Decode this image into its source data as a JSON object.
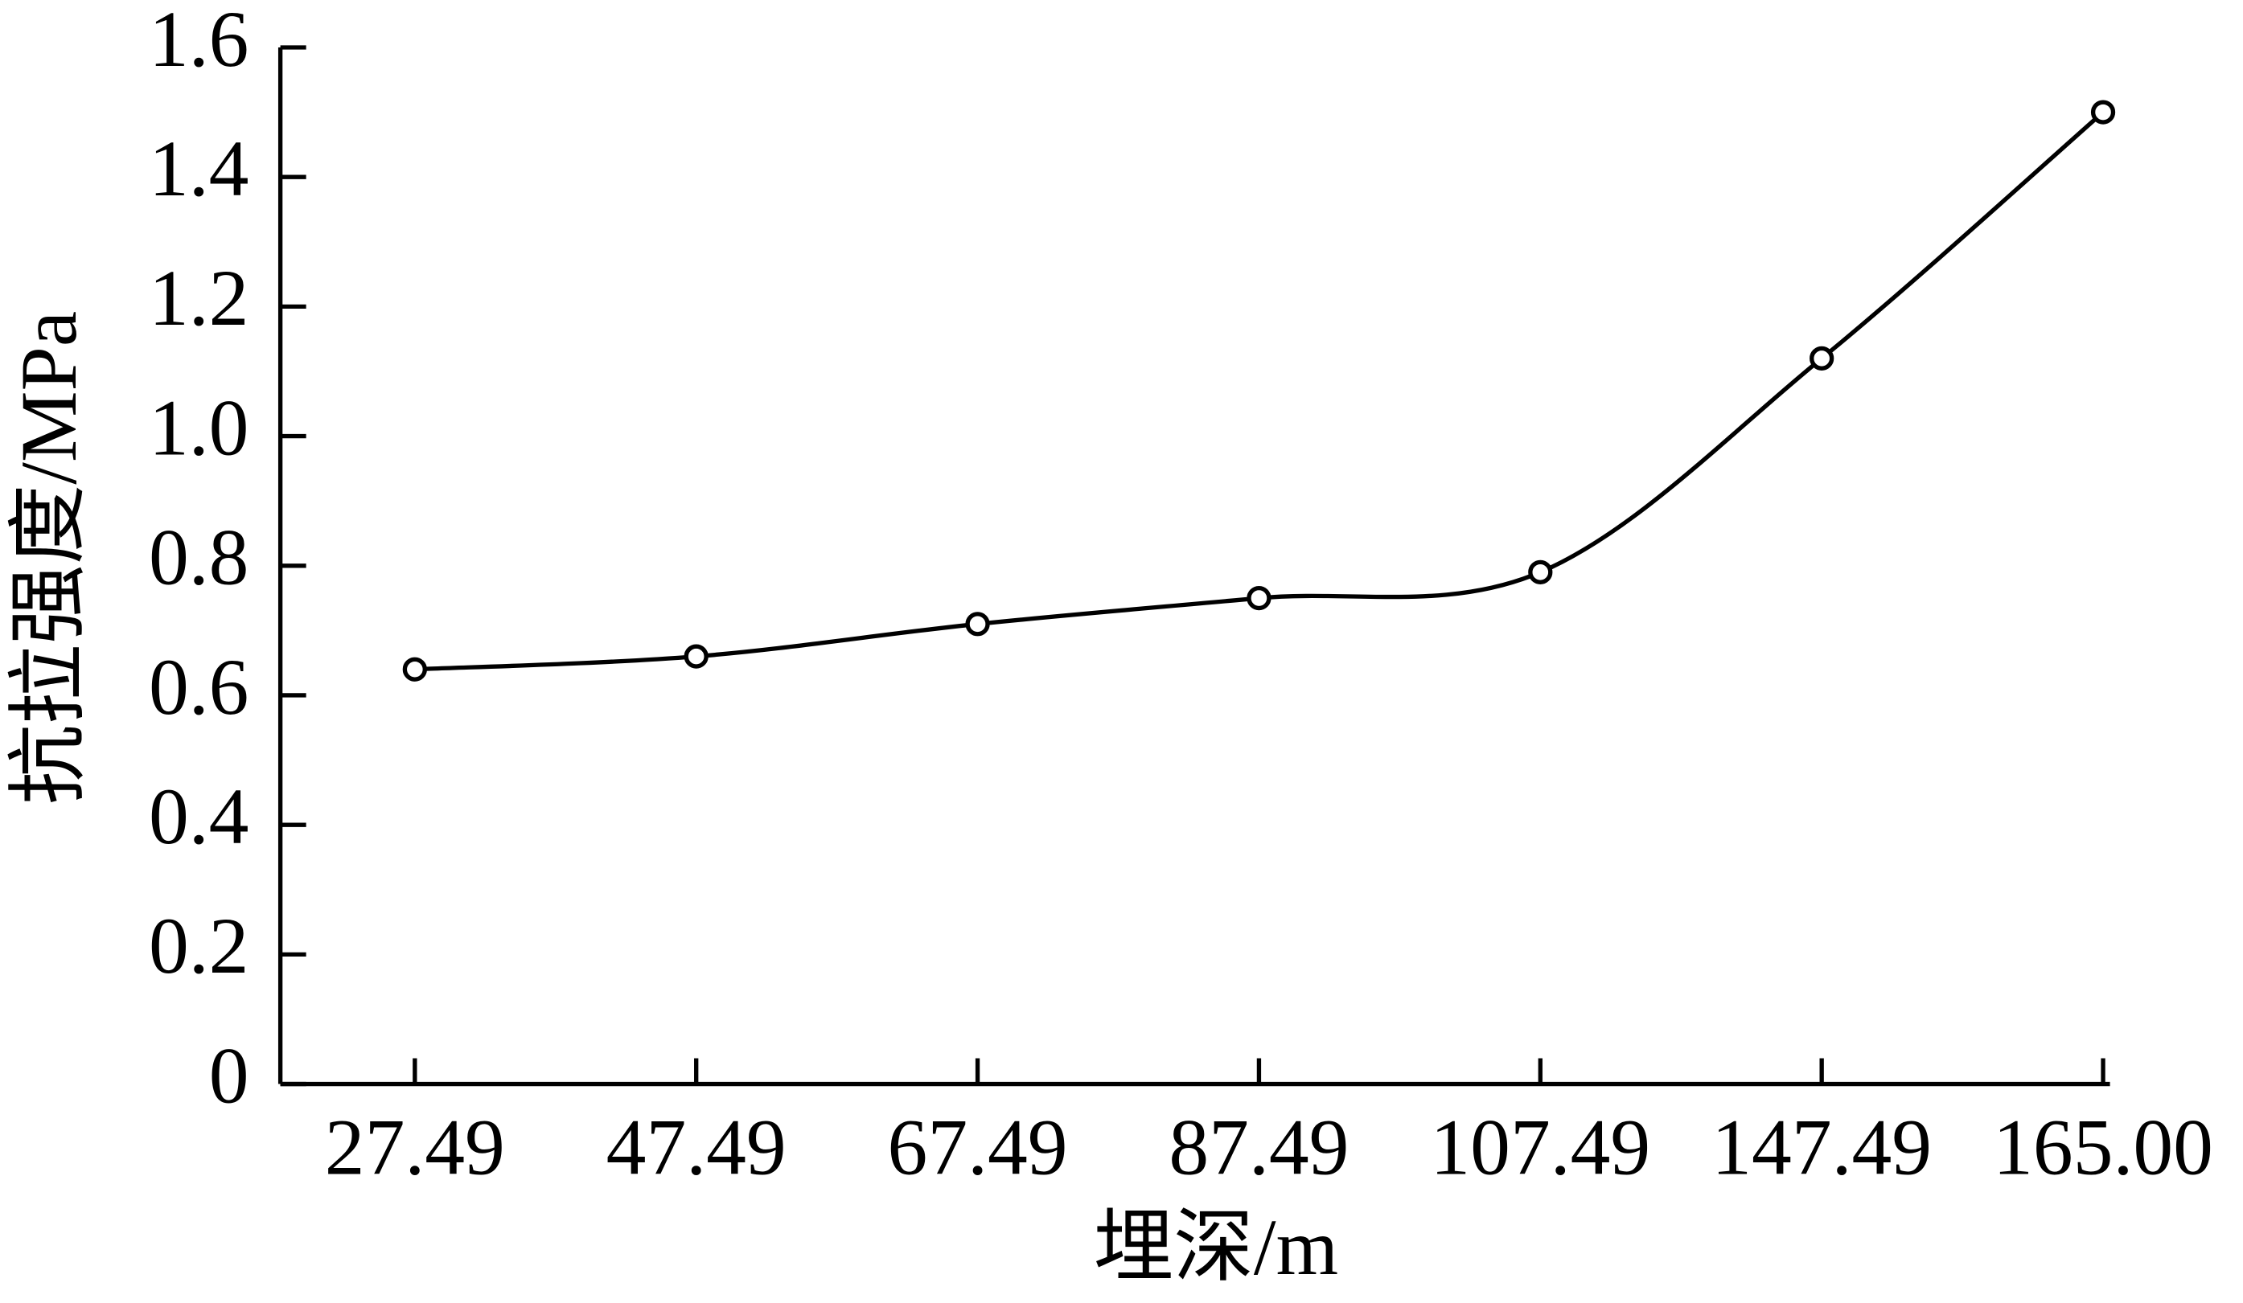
{
  "chart_data": {
    "type": "line",
    "x_label": "埋深/m",
    "y_label": "抗拉强度/MPa",
    "categories": [
      "27.49",
      "47.49",
      "67.49",
      "87.49",
      "107.49",
      "147.49",
      "165.00"
    ],
    "series": [
      {
        "color": "#000000",
        "values": [
          0.64,
          0.66,
          0.71,
          0.75,
          0.79,
          1.12,
          1.5
        ]
      }
    ],
    "ylim": [
      0,
      1.6
    ],
    "yticks": [
      0,
      0.2,
      0.4,
      0.6,
      0.8,
      {
        "value": 1,
        "label": "1.0"
      },
      1.2,
      1.4,
      1.6
    ]
  }
}
